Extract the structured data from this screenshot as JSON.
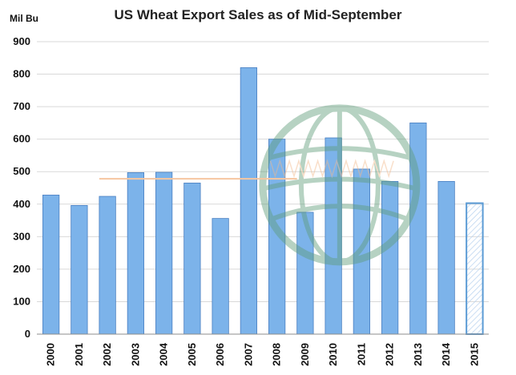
{
  "chart_data": {
    "type": "bar",
    "title": "US Wheat Export Sales as of Mid-September",
    "ylabel": "Mil Bu",
    "xlabel": "",
    "ylim": [
      0,
      900
    ],
    "yticks": [
      0,
      100,
      200,
      300,
      400,
      500,
      600,
      700,
      800,
      900
    ],
    "ytick_labels": [
      "0",
      "100",
      "200",
      "300",
      "400",
      "500",
      "600",
      "700",
      "800",
      "900"
    ],
    "grid": true,
    "categories": [
      "2000",
      "2001",
      "2002",
      "2003",
      "2004",
      "2005",
      "2006",
      "2007",
      "2008",
      "2009",
      "2010",
      "2011",
      "2012",
      "2013",
      "2014",
      "2015"
    ],
    "values": [
      428,
      396,
      424,
      497,
      498,
      465,
      356,
      820,
      600,
      375,
      604,
      508,
      470,
      650,
      470,
      403
    ],
    "bar_color": "#7cb3ea",
    "bar_edge_color": "#4a7fc1",
    "highlight_category": "2015",
    "highlight_style": "hatched-outline",
    "average_line": {
      "value": 478,
      "from": "2002",
      "to": "2009",
      "color": "#f6c6a0"
    }
  }
}
